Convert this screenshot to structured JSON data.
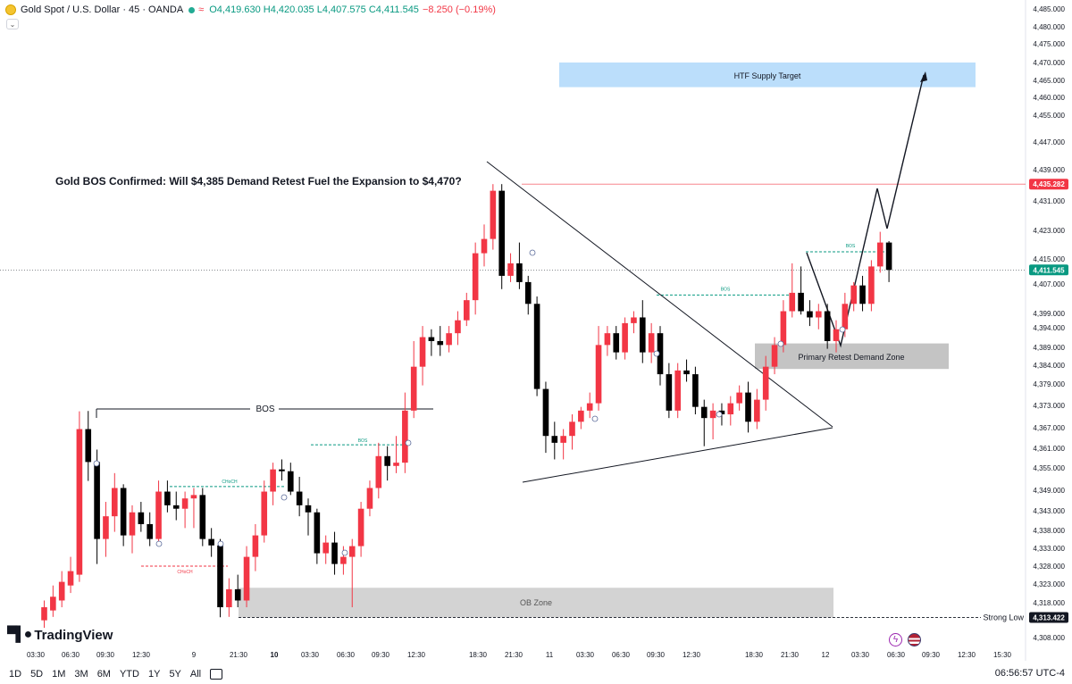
{
  "header": {
    "symbol": "Gold Spot / U.S. Dollar · 45 · OANDA",
    "open": "O4,419.630",
    "high": "H4,420.035",
    "low": "L4,407.575",
    "close": "C4,411.545",
    "change": "−8.250 (−0.19%)"
  },
  "bottom_bar": {
    "timeframes": [
      "1D",
      "5D",
      "1M",
      "3M",
      "6M",
      "YTD",
      "1Y",
      "5Y",
      "All"
    ],
    "clock": "06:56:57 UTC-4"
  },
  "branding": {
    "name": "TradingView"
  },
  "colors": {
    "up": "#f23645",
    "down": "#000000",
    "accent": "#089981",
    "supply": "#bbdefb",
    "zone": "#c4c4c4"
  },
  "chart_data": {
    "type": "candlestick",
    "title": "Gold BOS Confirmed: Will $4,385 Demand Retest Fuel the Expansion to $4,470?",
    "y_axis": {
      "ticks": [
        4308,
        4313,
        4318,
        4323,
        4328,
        4333,
        4338,
        4343,
        4349,
        4355,
        4361,
        4367,
        4373,
        4379,
        4384,
        4389,
        4394,
        4399,
        4407,
        4415,
        4423,
        4431,
        4439,
        4447,
        4455,
        4460,
        4465,
        4470,
        4475,
        4480,
        4485
      ],
      "tick_labels": [
        "4,308.000",
        "4,313.000",
        "4,318.000",
        "4,323.000",
        "4,328.000",
        "4,333.000",
        "4,338.000",
        "4,343.000",
        "4,349.000",
        "4,355.000",
        "4,361.000",
        "4,367.000",
        "4,373.000",
        "4,379.000",
        "4,384.000",
        "4,389.000",
        "4,394.000",
        "4,399.000",
        "4,407.000",
        "4,415.000",
        "4,423.000",
        "4,431.000",
        "4,439.000",
        "4,447.000",
        "4,455.000",
        "4,460.000",
        "4,465.000",
        "4,470.000",
        "4,475.000",
        "4,480.000",
        "4,485.000"
      ]
    },
    "x_axis": {
      "labels": [
        "03:30",
        "06:30",
        "09:30",
        "12:30",
        "9",
        "21:30",
        "10",
        "03:30",
        "06:30",
        "09:30",
        "12:30",
        "18:30",
        "21:30",
        "11",
        "03:30",
        "06:30",
        "09:30",
        "12:30",
        "18:30",
        "21:30",
        "12",
        "03:30",
        "06:30",
        "09:30",
        "12:30",
        "15:30"
      ],
      "bold": [
        "10"
      ]
    },
    "candles": [
      {
        "o": 4312.6,
        "h": 4318.6,
        "l": 4310.6,
        "c": 4316.6
      },
      {
        "o": 4315.6,
        "h": 4322.6,
        "l": 4313.6,
        "c": 4319.6
      },
      {
        "o": 4318.6,
        "h": 4326.6,
        "l": 4316.6,
        "c": 4323.6
      },
      {
        "o": 4322.6,
        "h": 4330.6,
        "l": 4320.6,
        "c": 4326.6
      },
      {
        "o": 4325.6,
        "h": 4371.4,
        "l": 4323.6,
        "c": 4366.6
      },
      {
        "o": 4366.6,
        "h": 4371.5,
        "l": 4351.5,
        "c": 4356.8
      },
      {
        "o": 4356.8,
        "h": 4360.6,
        "l": 4328.6,
        "c": 4335.6
      },
      {
        "o": 4335.6,
        "h": 4345.6,
        "l": 4330.6,
        "c": 4341.6
      },
      {
        "o": 4341.6,
        "h": 4353.6,
        "l": 4337.6,
        "c": 4349.6
      },
      {
        "o": 4349.6,
        "h": 4350.6,
        "l": 4333.6,
        "c": 4336.6
      },
      {
        "o": 4336.6,
        "h": 4344.6,
        "l": 4331.6,
        "c": 4342.6
      },
      {
        "o": 4342.6,
        "h": 4345.6,
        "l": 4337.6,
        "c": 4339.6
      },
      {
        "o": 4339.6,
        "h": 4342.6,
        "l": 4333.6,
        "c": 4335.6
      },
      {
        "o": 4335.6,
        "h": 4351.6,
        "l": 4333.6,
        "c": 4348.6
      },
      {
        "o": 4348.6,
        "h": 4351.6,
        "l": 4342.6,
        "c": 4344.6
      },
      {
        "o": 4344.6,
        "h": 4348.6,
        "l": 4340.6,
        "c": 4343.6
      },
      {
        "o": 4343.6,
        "h": 4348.6,
        "l": 4338.6,
        "c": 4346.6
      },
      {
        "o": 4346.6,
        "h": 4349.6,
        "l": 4338.6,
        "c": 4347.6
      },
      {
        "o": 4347.6,
        "h": 4349.6,
        "l": 4333.6,
        "c": 4335.6
      },
      {
        "o": 4335.6,
        "h": 4338.6,
        "l": 4330.6,
        "c": 4333.8
      },
      {
        "o": 4333.8,
        "h": 4335.6,
        "l": 4313.5,
        "c": 4316.6
      },
      {
        "o": 4316.6,
        "h": 4324.6,
        "l": 4313.6,
        "c": 4321.6
      },
      {
        "o": 4321.6,
        "h": 4325.6,
        "l": 4316.6,
        "c": 4318.6
      },
      {
        "o": 4318.6,
        "h": 4333.6,
        "l": 4316.6,
        "c": 4330.6
      },
      {
        "o": 4330.6,
        "h": 4339.6,
        "l": 4326.6,
        "c": 4336.6
      },
      {
        "o": 4336.6,
        "h": 4351.6,
        "l": 4334.6,
        "c": 4348.6
      },
      {
        "o": 4348.6,
        "h": 4356.6,
        "l": 4344.6,
        "c": 4354.6
      },
      {
        "o": 4354.6,
        "h": 4357.6,
        "l": 4351.6,
        "c": 4354.1
      },
      {
        "o": 4354.1,
        "h": 4356.6,
        "l": 4347.6,
        "c": 4348.6
      },
      {
        "o": 4348.6,
        "h": 4352.6,
        "l": 4341.6,
        "c": 4344.6
      },
      {
        "o": 4344.6,
        "h": 4346.6,
        "l": 4336.6,
        "c": 4342.6
      },
      {
        "o": 4342.6,
        "h": 4343.6,
        "l": 4328.6,
        "c": 4331.6
      },
      {
        "o": 4331.6,
        "h": 4336.6,
        "l": 4328.6,
        "c": 4334.6
      },
      {
        "o": 4334.6,
        "h": 4337.6,
        "l": 4325.6,
        "c": 4328.6
      },
      {
        "o": 4328.6,
        "h": 4333.6,
        "l": 4325.6,
        "c": 4330.6
      },
      {
        "o": 4330.6,
        "h": 4335.6,
        "l": 4316.6,
        "c": 4333.6
      },
      {
        "o": 4333.6,
        "h": 4345.6,
        "l": 4330.6,
        "c": 4343.6
      },
      {
        "o": 4343.6,
        "h": 4351.6,
        "l": 4341.6,
        "c": 4349.6
      },
      {
        "o": 4349.6,
        "h": 4362.6,
        "l": 4346.6,
        "c": 4358.6
      },
      {
        "o": 4358.6,
        "h": 4361.6,
        "l": 4351.6,
        "c": 4355.6
      },
      {
        "o": 4355.6,
        "h": 4364.6,
        "l": 4353.6,
        "c": 4356.6
      },
      {
        "o": 4356.6,
        "h": 4376.6,
        "l": 4353.6,
        "c": 4371.6
      },
      {
        "o": 4371.6,
        "h": 4390.6,
        "l": 4369.6,
        "c": 4383.6
      },
      {
        "o": 4383.6,
        "h": 4394.6,
        "l": 4378.6,
        "c": 4391.6
      },
      {
        "o": 4391.6,
        "h": 4393.6,
        "l": 4386.6,
        "c": 4390.6
      },
      {
        "o": 4390.6,
        "h": 4394.6,
        "l": 4386.6,
        "c": 4389.6
      },
      {
        "o": 4389.6,
        "h": 4394.6,
        "l": 4387.6,
        "c": 4392.6
      },
      {
        "o": 4392.6,
        "h": 4399.6,
        "l": 4389.6,
        "c": 4396.6
      },
      {
        "o": 4396.6,
        "h": 4404.6,
        "l": 4394.6,
        "c": 4402.6
      },
      {
        "o": 4402.6,
        "h": 4419.6,
        "l": 4398.6,
        "c": 4416.6
      },
      {
        "o": 4416.6,
        "h": 4424.6,
        "l": 4412.6,
        "c": 4420.6
      },
      {
        "o": 4420.6,
        "h": 4435.3,
        "l": 4417.6,
        "c": 4433.6
      },
      {
        "o": 4433.6,
        "h": 4435.3,
        "l": 4405.6,
        "c": 4409.6
      },
      {
        "o": 4409.6,
        "h": 4416.6,
        "l": 4407.6,
        "c": 4413.6
      },
      {
        "o": 4413.6,
        "h": 4419.6,
        "l": 4405.6,
        "c": 4407.6
      },
      {
        "o": 4407.6,
        "h": 4409.6,
        "l": 4398.6,
        "c": 4401.6
      },
      {
        "o": 4401.6,
        "h": 4403.6,
        "l": 4375.6,
        "c": 4377.6
      },
      {
        "o": 4377.6,
        "h": 4379.6,
        "l": 4359.6,
        "c": 4364.6
      },
      {
        "o": 4364.6,
        "h": 4368.6,
        "l": 4357.6,
        "c": 4362.6
      },
      {
        "o": 4362.6,
        "h": 4366.6,
        "l": 4357.6,
        "c": 4364.6
      },
      {
        "o": 4364.6,
        "h": 4370.6,
        "l": 4360.6,
        "c": 4368.6
      },
      {
        "o": 4368.6,
        "h": 4372.6,
        "l": 4366.6,
        "c": 4371.6
      },
      {
        "o": 4371.6,
        "h": 4376.6,
        "l": 4369.6,
        "c": 4373.6
      },
      {
        "o": 4373.6,
        "h": 4394.6,
        "l": 4371.6,
        "c": 4389.6
      },
      {
        "o": 4389.6,
        "h": 4394.6,
        "l": 4386.6,
        "c": 4392.6
      },
      {
        "o": 4392.6,
        "h": 4394.6,
        "l": 4385.6,
        "c": 4387.6
      },
      {
        "o": 4387.6,
        "h": 4397.6,
        "l": 4385.6,
        "c": 4395.6
      },
      {
        "o": 4395.6,
        "h": 4399.6,
        "l": 4392.6,
        "c": 4397.6
      },
      {
        "o": 4397.6,
        "h": 4402.6,
        "l": 4384.6,
        "c": 4387.6
      },
      {
        "o": 4387.6,
        "h": 4395.6,
        "l": 4384.6,
        "c": 4392.6
      },
      {
        "o": 4392.6,
        "h": 4394.6,
        "l": 4378.6,
        "c": 4381.6
      },
      {
        "o": 4381.6,
        "h": 4384.6,
        "l": 4369.6,
        "c": 4371.6
      },
      {
        "o": 4371.6,
        "h": 4384.6,
        "l": 4369.6,
        "c": 4382.6
      },
      {
        "o": 4382.6,
        "h": 4385.6,
        "l": 4379.6,
        "c": 4381.6
      },
      {
        "o": 4381.6,
        "h": 4383.6,
        "l": 4370.6,
        "c": 4372.6
      },
      {
        "o": 4372.6,
        "h": 4374.6,
        "l": 4361.6,
        "c": 4369.6
      },
      {
        "o": 4369.6,
        "h": 4373.6,
        "l": 4363.6,
        "c": 4371.6
      },
      {
        "o": 4371.6,
        "h": 4373.6,
        "l": 4367.6,
        "c": 4370.6
      },
      {
        "o": 4370.6,
        "h": 4375.6,
        "l": 4367.6,
        "c": 4373.6
      },
      {
        "o": 4373.6,
        "h": 4378.6,
        "l": 4371.6,
        "c": 4376.6
      },
      {
        "o": 4376.6,
        "h": 4379.6,
        "l": 4365.6,
        "c": 4368.6
      },
      {
        "o": 4368.6,
        "h": 4377.6,
        "l": 4366.6,
        "c": 4374.6
      },
      {
        "o": 4374.6,
        "h": 4386.6,
        "l": 4371.6,
        "c": 4383.6
      },
      {
        "o": 4383.6,
        "h": 4391.6,
        "l": 4381.6,
        "c": 4389.6
      },
      {
        "o": 4389.6,
        "h": 4402.6,
        "l": 4387.6,
        "c": 4399.6
      },
      {
        "o": 4399.6,
        "h": 4413.6,
        "l": 4397.6,
        "c": 4404.6
      },
      {
        "o": 4404.6,
        "h": 4412.6,
        "l": 4398.6,
        "c": 4399.6
      },
      {
        "o": 4399.6,
        "h": 4402.6,
        "l": 4394.6,
        "c": 4397.6
      },
      {
        "o": 4397.6,
        "h": 4401.6,
        "l": 4393.6,
        "c": 4399.6
      },
      {
        "o": 4399.6,
        "h": 4401.6,
        "l": 4388.6,
        "c": 4390.6
      },
      {
        "o": 4390.6,
        "h": 4396.6,
        "l": 4387.6,
        "c": 4393.6
      },
      {
        "o": 4393.6,
        "h": 4404.6,
        "l": 4391.6,
        "c": 4401.6
      },
      {
        "o": 4401.6,
        "h": 4407.6,
        "l": 4399.6,
        "c": 4406.6
      },
      {
        "o": 4406.6,
        "h": 4409.6,
        "l": 4399.6,
        "c": 4401.6
      },
      {
        "o": 4401.6,
        "h": 4414.6,
        "l": 4399.6,
        "c": 4412.6
      },
      {
        "o": 4412.6,
        "h": 4422.6,
        "l": 4410.6,
        "c": 4419.6
      },
      {
        "o": 4419.6,
        "h": 4420.0,
        "l": 4407.6,
        "c": 4411.5
      }
    ],
    "price_labels": {
      "resistance": "4,435.282",
      "current": "4,411.545",
      "strong_low": "4,313.422"
    },
    "annotations": {
      "bos_main": "BOS",
      "bos_small": "BOS",
      "choch": "CHoCH",
      "ob_zone": "OB Zone",
      "demand_zone": "Primary Retest Demand Zone",
      "supply_target": "HTF Supply Target",
      "strong_low": "Strong Low"
    }
  }
}
